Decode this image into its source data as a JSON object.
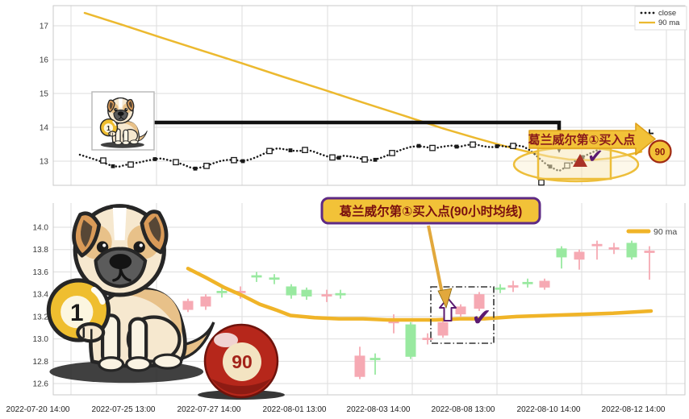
{
  "colors": {
    "close_line": "#1a1a1a",
    "ma_line": "#ecb92f",
    "candle_up_pink": "#f6a9b3",
    "candle_down_green": "#99e9a0",
    "banner_fill": "#f2c238",
    "banner_border": "#dfa11c",
    "maroon_text": "#8a1a1a",
    "purple": "#5e2a84",
    "check_purple": "#5b1a70",
    "triangle_red": "#a93226",
    "ball_red": "#b6271b",
    "grid": "#dedede"
  },
  "top_panel": {
    "legend": {
      "close_label": "close",
      "ma_label": "90 ma"
    },
    "banner_text": "葛兰威尔第①买入点",
    "ball90_label": "90",
    "yticks": [
      {
        "label": "17",
        "value": 17
      },
      {
        "label": "16",
        "value": 16
      },
      {
        "label": "15",
        "value": 15
      },
      {
        "label": "14",
        "value": 14
      },
      {
        "label": "13",
        "value": 13
      }
    ]
  },
  "bottom_panel": {
    "annotation_text": "葛兰威尔第①买入点(90小时均线)",
    "legend": {
      "ma_label": "90 ma"
    },
    "ball1_label": "1",
    "ball90_label": "90",
    "yticks": [
      {
        "label": "14.0",
        "value": 14.0
      },
      {
        "label": "13.8",
        "value": 13.8
      },
      {
        "label": "13.6",
        "value": 13.6
      },
      {
        "label": "13.4",
        "value": 13.4
      },
      {
        "label": "13.2",
        "value": 13.2
      },
      {
        "label": "13.0",
        "value": 13.0
      },
      {
        "label": "12.8",
        "value": 12.8
      },
      {
        "label": "12.6",
        "value": 12.6
      }
    ],
    "xticklabels": [
      "2022-07-20 14:00",
      "2022-07-25 13:00",
      "2022-07-27 14:00",
      "2022-08-01 13:00",
      "2022-08-03 14:00",
      "2022-08-08 13:00",
      "2022-08-10 14:00",
      "2022-08-12 14:00"
    ]
  },
  "chart_data": [
    {
      "type": "line",
      "panel": "top",
      "title": "",
      "ylim": [
        12.3,
        17.6
      ],
      "yticks": [
        17,
        16,
        15,
        14,
        13
      ],
      "legend_position": "top-right",
      "grid": true,
      "series": [
        {
          "name": "close",
          "style": "dotted",
          "color": "#1a1a1a",
          "points": [
            [
              99,
              13.19
            ],
            [
              107,
              13.13
            ],
            [
              115,
              13.07
            ],
            [
              124,
              13.0
            ],
            [
              132,
              12.92
            ],
            [
              140,
              12.85
            ],
            [
              148,
              12.84
            ],
            [
              156,
              12.89
            ],
            [
              165,
              12.93
            ],
            [
              174,
              12.97
            ],
            [
              183,
              13.02
            ],
            [
              192,
              13.06
            ],
            [
              200,
              13.08
            ],
            [
              209,
              13.03
            ],
            [
              218,
              12.97
            ],
            [
              227,
              12.9
            ],
            [
              235,
              12.82
            ],
            [
              242,
              12.78
            ],
            [
              250,
              12.82
            ],
            [
              258,
              12.88
            ],
            [
              266,
              12.95
            ],
            [
              274,
              13.01
            ],
            [
              283,
              13.04
            ],
            [
              292,
              13.03
            ],
            [
              301,
              13.0
            ],
            [
              310,
              13.05
            ],
            [
              318,
              13.12
            ],
            [
              327,
              13.22
            ],
            [
              336,
              13.32
            ],
            [
              344,
              13.38
            ],
            [
              353,
              13.35
            ],
            [
              362,
              13.31
            ],
            [
              371,
              13.3
            ],
            [
              380,
              13.34
            ],
            [
              389,
              13.28
            ],
            [
              398,
              13.2
            ],
            [
              407,
              13.13
            ],
            [
              416,
              13.08
            ],
            [
              425,
              13.16
            ],
            [
              434,
              13.14
            ],
            [
              443,
              13.1
            ],
            [
              452,
              13.04
            ],
            [
              461,
              13.03
            ],
            [
              470,
              13.08
            ],
            [
              479,
              13.16
            ],
            [
              489,
              13.26
            ],
            [
              499,
              13.35
            ],
            [
              509,
              13.42
            ],
            [
              519,
              13.45
            ],
            [
              529,
              13.41
            ],
            [
              539,
              13.38
            ],
            [
              549,
              13.43
            ],
            [
              559,
              13.46
            ],
            [
              569,
              13.42
            ],
            [
              579,
              13.48
            ],
            [
              589,
              13.5
            ],
            [
              599,
              13.44
            ],
            [
              609,
              13.41
            ],
            [
              619,
              13.46
            ],
            [
              629,
              13.42
            ],
            [
              639,
              13.47
            ],
            [
              649,
              13.43
            ],
            [
              657,
              13.32
            ],
            [
              664,
              13.18
            ],
            [
              670,
              13.05
            ],
            [
              676,
              12.93
            ],
            [
              682,
              12.84
            ],
            [
              688,
              12.76
            ],
            [
              693,
              12.71
            ],
            [
              698,
              12.78
            ],
            [
              703,
              12.86
            ],
            [
              709,
              12.95
            ],
            [
              715,
              13.03
            ],
            [
              721,
              13.11
            ],
            [
              728,
              13.19
            ],
            [
              736,
              13.28
            ],
            [
              744,
              13.36
            ],
            [
              752,
              13.43
            ],
            [
              761,
              13.5
            ],
            [
              771,
              13.58
            ],
            [
              781,
              13.66
            ],
            [
              791,
              13.73
            ],
            [
              799,
              13.78
            ],
            [
              805,
              13.82
            ]
          ],
          "hollow_markers": [
            [
              128,
              13.02
            ],
            [
              162,
              12.9
            ],
            [
              218,
              12.97
            ],
            [
              256,
              12.86
            ],
            [
              290,
              13.03
            ],
            [
              334,
              13.3
            ],
            [
              378,
              13.33
            ],
            [
              412,
              13.11
            ],
            [
              452,
              13.05
            ],
            [
              486,
              13.24
            ],
            [
              536,
              13.39
            ],
            [
              586,
              13.49
            ],
            [
              636,
              13.45
            ],
            [
              671,
              12.37
            ],
            [
              703,
              12.87
            ]
          ],
          "filled_markers": [
            [
              140,
              12.85
            ],
            [
              192,
              13.06
            ],
            [
              242,
              12.78
            ],
            [
              301,
              13.0
            ],
            [
              360,
              13.32
            ],
            [
              420,
              13.1
            ],
            [
              465,
              13.04
            ],
            [
              519,
              13.45
            ],
            [
              566,
              13.43
            ],
            [
              616,
              13.44
            ],
            [
              682,
              12.84
            ],
            [
              722,
              13.12
            ]
          ],
          "last_point_plus": [
            805,
            13.82
          ]
        },
        {
          "name": "90 ma",
          "style": "solid",
          "color": "#ecb92f",
          "points": [
            [
              105,
              17.38
            ],
            [
              150,
              17.04
            ],
            [
              200,
              16.65
            ],
            [
              250,
              16.27
            ],
            [
              300,
              15.89
            ],
            [
              350,
              15.5
            ],
            [
              400,
              15.12
            ],
            [
              450,
              14.73
            ],
            [
              500,
              14.35
            ],
            [
              550,
              13.96
            ],
            [
              590,
              13.68
            ],
            [
              620,
              13.48
            ],
            [
              650,
              13.3
            ],
            [
              680,
              13.14
            ],
            [
              705,
              13.05
            ],
            [
              730,
              13.03
            ],
            [
              755,
              13.08
            ],
            [
              775,
              13.17
            ],
            [
              795,
              13.28
            ]
          ]
        }
      ]
    },
    {
      "type": "candlestick",
      "panel": "bottom",
      "title": "",
      "ylim": [
        12.5,
        14.25
      ],
      "yticks": [
        14.0,
        13.8,
        13.6,
        13.4,
        13.2,
        13.0,
        12.8,
        12.6
      ],
      "grid": true,
      "up_color_meaning": "pink = rising candle, green = falling candle",
      "candles": [
        [
          233,
          13.26,
          13.34,
          13.24,
          13.36,
          "p"
        ],
        [
          255,
          13.29,
          13.38,
          13.26,
          13.4,
          "p"
        ],
        [
          275,
          13.41,
          13.43,
          13.37,
          13.46,
          "g"
        ],
        [
          298,
          13.41,
          13.43,
          13.36,
          13.47,
          "p"
        ],
        [
          318,
          13.55,
          13.57,
          13.51,
          13.6,
          "g"
        ],
        [
          340,
          13.53,
          13.55,
          13.49,
          13.58,
          "g"
        ],
        [
          361,
          13.39,
          13.47,
          13.36,
          13.49,
          "g"
        ],
        [
          380,
          13.38,
          13.44,
          13.35,
          13.46,
          "g"
        ],
        [
          405,
          13.38,
          13.4,
          13.33,
          13.44,
          "p"
        ],
        [
          422,
          13.39,
          13.41,
          13.36,
          13.44,
          "g"
        ],
        [
          446,
          12.66,
          12.85,
          12.64,
          12.93,
          "p"
        ],
        [
          465,
          12.81,
          12.83,
          12.68,
          12.87,
          "g"
        ],
        [
          488,
          13.14,
          13.16,
          13.05,
          13.22,
          "p"
        ],
        [
          509,
          12.84,
          13.13,
          12.82,
          13.15,
          "g"
        ],
        [
          530,
          12.99,
          13.01,
          12.95,
          13.05,
          "p"
        ],
        [
          549,
          13.03,
          13.15,
          13.01,
          13.17,
          "p"
        ],
        [
          571,
          13.22,
          13.29,
          13.2,
          13.31,
          "p"
        ],
        [
          594,
          13.27,
          13.4,
          13.25,
          13.42,
          "p"
        ],
        [
          620,
          13.44,
          13.46,
          13.41,
          13.49,
          "g"
        ],
        [
          636,
          13.46,
          13.48,
          13.42,
          13.52,
          "p"
        ],
        [
          654,
          13.49,
          13.51,
          13.46,
          13.54,
          "g"
        ],
        [
          675,
          13.46,
          13.52,
          13.44,
          13.54,
          "p"
        ],
        [
          696,
          13.73,
          13.81,
          13.63,
          13.83,
          "g"
        ],
        [
          718,
          13.71,
          13.78,
          13.62,
          13.8,
          "p"
        ],
        [
          740,
          13.83,
          13.85,
          13.71,
          13.88,
          "p"
        ],
        [
          761,
          13.8,
          13.82,
          13.76,
          13.86,
          "p"
        ],
        [
          783,
          13.73,
          13.86,
          13.71,
          13.88,
          "g"
        ],
        [
          805,
          13.77,
          13.79,
          13.53,
          13.83,
          "p"
        ]
      ],
      "ma": {
        "name": "90 ma",
        "color": "#f0b428",
        "points": [
          [
            233,
            13.63
          ],
          [
            255,
            13.55
          ],
          [
            278,
            13.46
          ],
          [
            300,
            13.39
          ],
          [
            322,
            13.31
          ],
          [
            342,
            13.26
          ],
          [
            360,
            13.21
          ],
          [
            390,
            13.19
          ],
          [
            420,
            13.18
          ],
          [
            450,
            13.18
          ],
          [
            480,
            13.17
          ],
          [
            510,
            13.17
          ],
          [
            540,
            13.17
          ],
          [
            570,
            13.18
          ],
          [
            600,
            13.18
          ],
          [
            640,
            13.2
          ],
          [
            680,
            13.21
          ],
          [
            720,
            13.22
          ],
          [
            760,
            13.23
          ],
          [
            807,
            13.25
          ]
        ]
      },
      "xticklabels": [
        "2022-07-20 14:00",
        "2022-07-25 13:00",
        "2022-07-27 14:00",
        "2022-08-01 13:00",
        "2022-08-03 14:00",
        "2022-08-08 13:00",
        "2022-08-10 14:00",
        "2022-08-12 14:00"
      ]
    }
  ]
}
